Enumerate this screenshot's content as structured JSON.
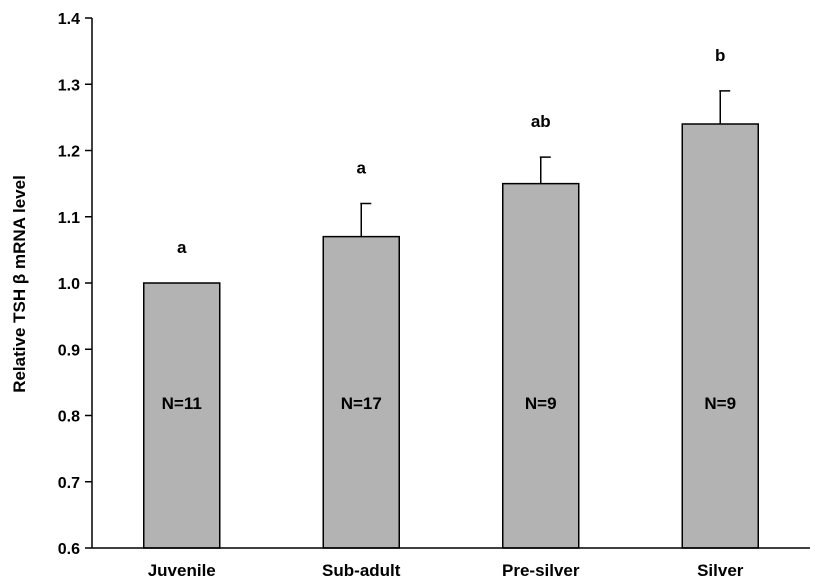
{
  "chart_data": {
    "type": "bar",
    "title": "",
    "xlabel": "",
    "ylabel": "Relative TSH β mRNA level",
    "ylim": [
      0.6,
      1.4
    ],
    "yticks": [
      "0.6",
      "0.7",
      "0.8",
      "0.9",
      "1.0",
      "1.1",
      "1.2",
      "1.3",
      "1.4"
    ],
    "ytick_values": [
      0.6,
      0.7,
      0.8,
      0.9,
      1.0,
      1.1,
      1.2,
      1.3,
      1.4
    ],
    "categories": [
      "Juvenile",
      "Sub-adult",
      "Pre-silver",
      "Silver"
    ],
    "values": [
      1.0,
      1.07,
      1.15,
      1.24
    ],
    "errors": [
      0.0,
      0.05,
      0.04,
      0.05
    ],
    "significance": [
      "a",
      "a",
      "ab",
      "b"
    ],
    "n_labels": [
      "N=11",
      "N=17",
      "N=9",
      "N=9"
    ],
    "bar_color": "#b3b3b3",
    "grid": false,
    "legend": "none"
  }
}
